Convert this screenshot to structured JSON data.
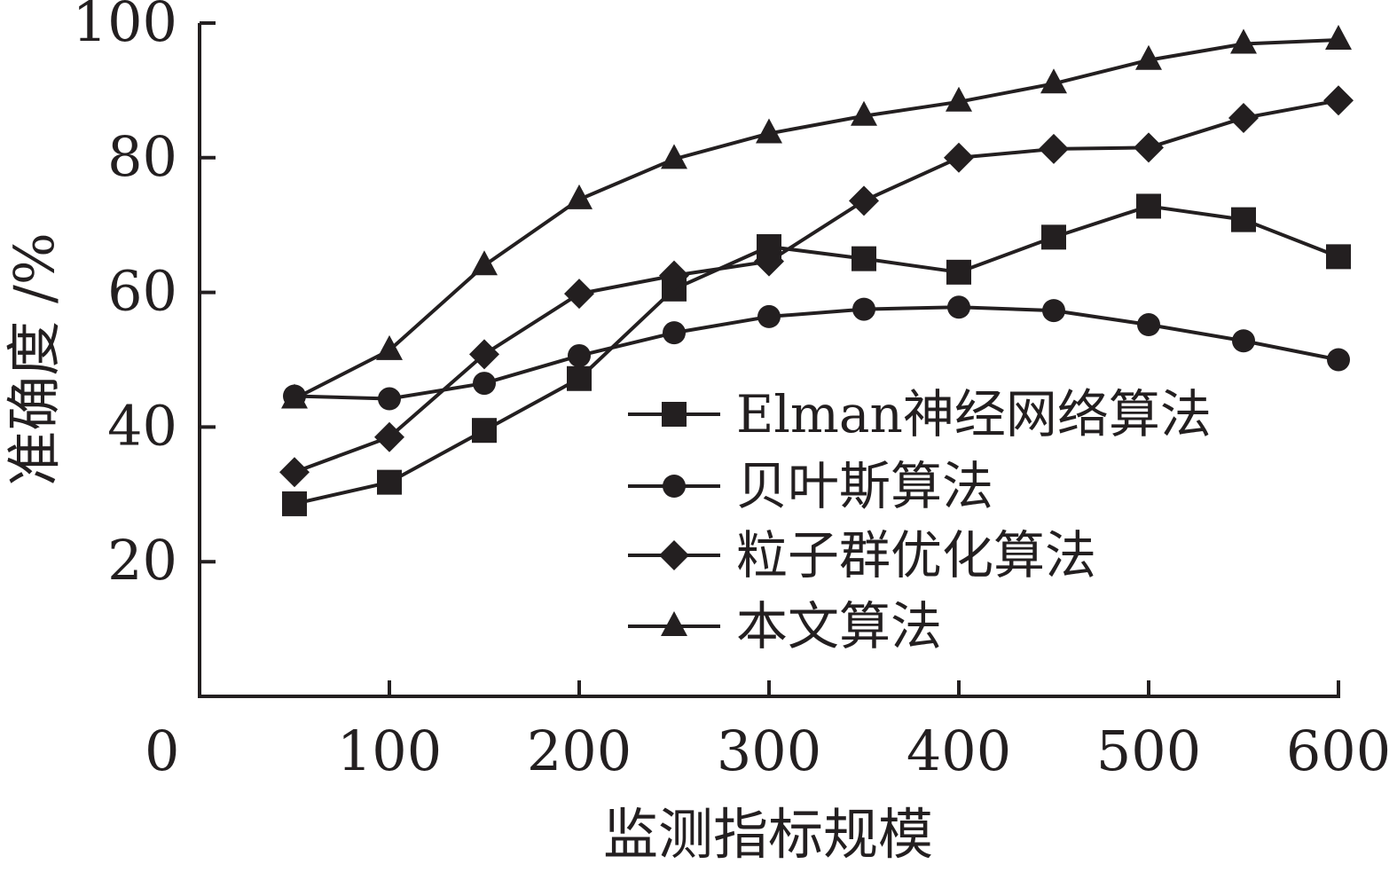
{
  "chart_data": {
    "type": "line",
    "xlabel": "监测指标规模",
    "ylabel": "准确度 /%",
    "x": [
      50,
      100,
      150,
      200,
      250,
      300,
      350,
      400,
      450,
      500,
      550,
      600
    ],
    "xlim": [
      0,
      600
    ],
    "ylim": [
      0,
      100
    ],
    "x_ticks": [
      "0",
      "100",
      "200",
      "300",
      "400",
      "500",
      "600"
    ],
    "y_ticks": [
      "20",
      "40",
      "60",
      "80",
      "100"
    ],
    "grid": false,
    "legend_position": "bottom-right",
    "series": [
      {
        "name": "Elman神经网络算法",
        "marker": "square",
        "values": [
          28.6,
          31.8,
          39.5,
          47.2,
          60.5,
          66.8,
          65.0,
          63.0,
          68.2,
          72.8,
          70.8,
          65.3
        ]
      },
      {
        "name": "贝叶斯算法",
        "marker": "circle",
        "values": [
          44.6,
          44.2,
          46.5,
          50.6,
          54.0,
          56.4,
          57.5,
          57.8,
          57.3,
          55.2,
          52.8,
          50.0
        ]
      },
      {
        "name": "粒子群优化算法",
        "marker": "diamond",
        "values": [
          33.3,
          38.5,
          50.8,
          59.8,
          62.5,
          64.6,
          73.6,
          80.0,
          81.3,
          81.5,
          85.9,
          88.5
        ]
      },
      {
        "name": "本文算法",
        "marker": "triangle",
        "values": [
          44.2,
          51.4,
          64.0,
          73.8,
          79.8,
          83.6,
          86.2,
          88.3,
          91.0,
          94.5,
          96.9,
          97.5
        ]
      }
    ],
    "colors": {
      "line": "#231f20",
      "background": "#ffffff"
    }
  }
}
